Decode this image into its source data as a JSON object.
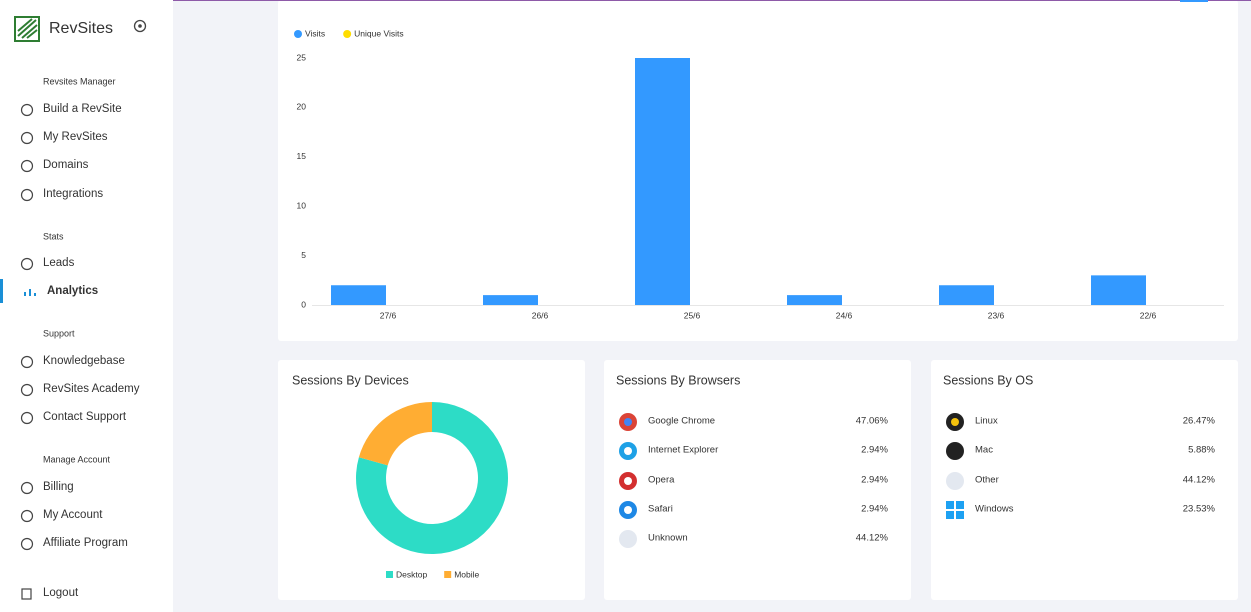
{
  "sidebar": {
    "brand": "RevSites",
    "sections": [
      {
        "title": "Revsites Manager",
        "items": [
          "Build a RevSite",
          "My RevSites",
          "Domains",
          "Integrations"
        ]
      },
      {
        "title": "Stats",
        "items": [
          "Leads",
          "Analytics"
        ]
      },
      {
        "title": "Support",
        "items": [
          "Knowledgebase",
          "RevSites Academy",
          "Contact Support"
        ]
      },
      {
        "title": "Manage Account",
        "items": [
          "Billing",
          "My Account",
          "Affiliate Program"
        ]
      }
    ],
    "active_section": 1,
    "active_item": 1,
    "logout": "Logout"
  },
  "visits_chart": {
    "type": "bar",
    "categories": [
      "27/6",
      "26/6",
      "25/6",
      "24/6",
      "23/6",
      "22/6"
    ],
    "series": [
      {
        "name": "Visits",
        "color": "#3399ff",
        "values": [
          2,
          1,
          25,
          1,
          2,
          3
        ]
      },
      {
        "name": "Unique Visits",
        "color": "#ffdd00",
        "values": [
          0,
          0,
          0,
          0,
          0,
          0
        ]
      }
    ],
    "ylim": [
      0,
      25
    ],
    "yticks": [
      0,
      5,
      10,
      15,
      20,
      25
    ],
    "grid": false
  },
  "devices_chart": {
    "type": "donut",
    "title": "Sessions By Devices",
    "categories": [
      "Desktop",
      "Mobile"
    ],
    "values": [
      79.41,
      20.59
    ],
    "colors": [
      "#2ddcc6",
      "#ffad33"
    ]
  },
  "browsers": {
    "title": "Sessions By Browsers",
    "rows": [
      [
        "Google Chrome",
        "47.06%"
      ],
      [
        "Internet Explorer",
        "2.94%"
      ],
      [
        "Opera",
        "2.94%"
      ],
      [
        "Safari",
        "2.94%"
      ],
      [
        "Unknown",
        "44.12%"
      ]
    ]
  },
  "os": {
    "title": "Sessions By OS",
    "rows": [
      [
        "Linux",
        "26.47%"
      ],
      [
        "Mac",
        "5.88%"
      ],
      [
        "Other",
        "44.12%"
      ],
      [
        "Windows",
        "23.53%"
      ]
    ]
  }
}
